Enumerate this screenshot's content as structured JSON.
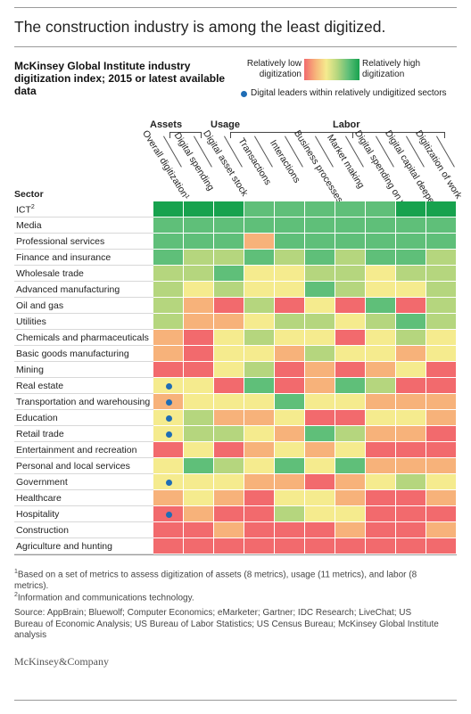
{
  "title": "The construction industry is among the least digitized.",
  "subtitle": "McKinsey Global Institute industry digitization index; 2015 or latest available data",
  "legend": {
    "low_label": "Relatively low digitization",
    "high_label": "Relatively high digitization",
    "dot_label": "Digital leaders within relatively undigitized sectors",
    "dot_color": "#1f6db5"
  },
  "groups": [
    {
      "label": "Assets"
    },
    {
      "label": "Usage"
    },
    {
      "label": "Labor"
    }
  ],
  "sector_header": "Sector",
  "footnotes": {
    "note1": "Based on a set of metrics to assess digitization of assets (8 metrics), usage (11 metrics), and labor (8 metrics).",
    "note2": "Information and communications technology."
  },
  "source": "Source: AppBrain; Bluewolf; Computer Economics; eMarketer; Gartner; IDC Research; LiveChat; US Bureau of Economic Analysis; US Bureau of Labor Statistics; US Census Bureau; McKinsey Global Institute analysis",
  "brand": "McKinsey&Company",
  "chart_data": {
    "type": "heatmap",
    "title": "The construction industry is among the least digitized.",
    "scale": {
      "levels": [
        1,
        2,
        3,
        4,
        5,
        6
      ],
      "level_meaning": "1 = relatively low digitization, 6 = relatively high digitization",
      "colors": [
        "#f26a6d",
        "#f7b27a",
        "#f5eb8e",
        "#b5d67e",
        "#5fbf79",
        "#17a24e"
      ]
    },
    "columns": [
      "Overall digitization¹",
      "Digital spending",
      "Digital asset stock",
      "Transactions",
      "Interactions",
      "Business processes",
      "Market making",
      "Digital spending on workers",
      "Digital capital deepening",
      "Digitization of work"
    ],
    "column_groups": [
      {
        "name": "Assets",
        "columns": [
          "Digital spending",
          "Digital asset stock"
        ]
      },
      {
        "name": "Usage",
        "columns": [
          "Transactions",
          "Interactions",
          "Business processes",
          "Market making"
        ]
      },
      {
        "name": "Labor",
        "columns": [
          "Digital spending on workers",
          "Digital capital deepening",
          "Digitization of work"
        ]
      }
    ],
    "rows": [
      {
        "sector": "ICT",
        "sup": "2",
        "values": [
          6,
          6,
          6,
          5,
          5,
          5,
          5,
          5,
          6,
          6
        ],
        "leader": false
      },
      {
        "sector": "Media",
        "values": [
          5,
          5,
          5,
          5,
          5,
          5,
          5,
          5,
          5,
          5
        ],
        "leader": false
      },
      {
        "sector": "Professional services",
        "values": [
          5,
          5,
          5,
          2,
          5,
          5,
          5,
          5,
          5,
          5
        ],
        "leader": false
      },
      {
        "sector": "Finance and insurance",
        "values": [
          5,
          4,
          4,
          5,
          4,
          5,
          4,
          5,
          5,
          4
        ],
        "leader": false
      },
      {
        "sector": "Wholesale trade",
        "values": [
          4,
          4,
          5,
          3,
          3,
          4,
          4,
          3,
          4,
          4
        ],
        "leader": false
      },
      {
        "sector": "Advanced manufacturing",
        "values": [
          4,
          3,
          4,
          3,
          3,
          5,
          4,
          3,
          3,
          4
        ],
        "leader": false
      },
      {
        "sector": "Oil and gas",
        "values": [
          4,
          2,
          1,
          4,
          1,
          3,
          1,
          5,
          1,
          4
        ],
        "leader": false
      },
      {
        "sector": "Utilities",
        "values": [
          4,
          2,
          2,
          3,
          4,
          4,
          3,
          4,
          5,
          4
        ],
        "leader": false
      },
      {
        "sector": "Chemicals and pharmaceuticals",
        "values": [
          2,
          1,
          3,
          4,
          3,
          3,
          1,
          3,
          4,
          3
        ],
        "leader": false
      },
      {
        "sector": "Basic goods manufacturing",
        "values": [
          2,
          1,
          3,
          3,
          2,
          4,
          3,
          3,
          2,
          3
        ],
        "leader": false
      },
      {
        "sector": "Mining",
        "values": [
          1,
          1,
          3,
          4,
          1,
          2,
          1,
          2,
          3,
          1
        ],
        "leader": false
      },
      {
        "sector": "Real estate",
        "values": [
          3,
          3,
          1,
          5,
          1,
          2,
          5,
          4,
          1,
          1
        ],
        "leader": true
      },
      {
        "sector": "Transportation and warehousing",
        "values": [
          2,
          3,
          3,
          3,
          5,
          3,
          3,
          2,
          2,
          2
        ],
        "leader": true
      },
      {
        "sector": "Education",
        "values": [
          3,
          4,
          2,
          2,
          3,
          1,
          1,
          3,
          3,
          2
        ],
        "leader": true
      },
      {
        "sector": "Retail trade",
        "values": [
          3,
          4,
          4,
          3,
          2,
          5,
          4,
          2,
          2,
          1
        ],
        "leader": true
      },
      {
        "sector": "Entertainment and recreation",
        "values": [
          1,
          3,
          1,
          2,
          3,
          2,
          3,
          1,
          1,
          1
        ],
        "leader": false
      },
      {
        "sector": "Personal and local services",
        "values": [
          3,
          5,
          4,
          3,
          5,
          3,
          5,
          2,
          2,
          2
        ],
        "leader": false
      },
      {
        "sector": "Government",
        "values": [
          3,
          3,
          3,
          2,
          2,
          1,
          2,
          3,
          4,
          3
        ],
        "leader": true
      },
      {
        "sector": "Healthcare",
        "values": [
          2,
          3,
          2,
          1,
          3,
          3,
          2,
          1,
          1,
          2
        ],
        "leader": false
      },
      {
        "sector": "Hospitality",
        "values": [
          1,
          2,
          1,
          1,
          4,
          3,
          3,
          1,
          1,
          1
        ],
        "leader": true
      },
      {
        "sector": "Construction",
        "values": [
          1,
          1,
          2,
          1,
          1,
          1,
          2,
          1,
          1,
          2
        ],
        "leader": false
      },
      {
        "sector": "Agriculture and hunting",
        "values": [
          1,
          1,
          1,
          1,
          1,
          1,
          1,
          1,
          1,
          1
        ],
        "leader": false
      }
    ]
  }
}
